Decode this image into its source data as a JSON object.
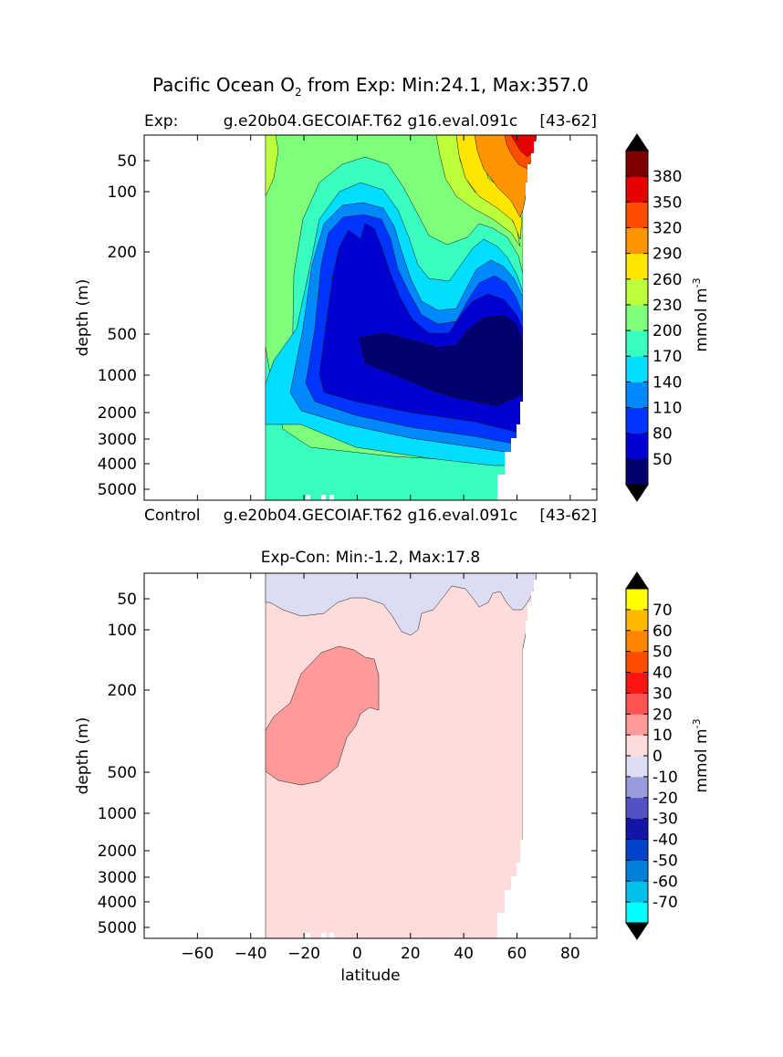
{
  "suptitle": {
    "prefix": "Pacific Ocean O",
    "subscript": "2",
    "suffix": " from Exp: Min:24.1, Max:357.0"
  },
  "colors": {
    "fill_lowest": "#ffffff",
    "exp_levels": [
      "#00006e",
      "#0000d0",
      "#0035ff",
      "#0089ff",
      "#00ddff",
      "#38ffc0",
      "#7dff7b",
      "#bcff3b",
      "#ffe600",
      "#ff9500",
      "#ff4d00",
      "#e60000",
      "#7f0000"
    ],
    "diff_levels": [
      "#00ffff",
      "#00bfe8",
      "#0080d8",
      "#0043c8",
      "#1414a6",
      "#5252c4",
      "#9a9ade",
      "#dcdcf2",
      "#ffdcdc",
      "#ff9a9a",
      "#ff5252",
      "#ff1414",
      "#ff4d00",
      "#ff8500",
      "#ffb800",
      "#ffff00"
    ]
  },
  "chart_data": [
    {
      "type": "contourf",
      "name": "experiment",
      "title_left": "Exp:",
      "title_center": "g.e20b04.GECOIAF.T62 g16.eval.091c",
      "title_right": "[43-62]",
      "xlabel": "",
      "ylabel": "depth (m)",
      "xlim": [
        -80,
        90
      ],
      "x_scale": "linear",
      "y_scale": "log-like, inverted",
      "y_ticks": [
        50,
        100,
        200,
        500,
        1000,
        2000,
        3000,
        4000,
        5000
      ],
      "y_tick_labels": [
        "50",
        "100",
        "200",
        "500",
        "1000",
        "2000",
        "3000",
        "4000",
        "5000"
      ],
      "x_tick_labels_visible": false,
      "data_extent_lat": [
        -34,
        67
      ],
      "colorbar": {
        "label_main": "mmol m",
        "label_exp": "-3",
        "levels": [
          20,
          50,
          80,
          110,
          140,
          170,
          200,
          230,
          260,
          290,
          320,
          350,
          380,
          410
        ],
        "tick_labels": [
          "50",
          "80",
          "110",
          "140",
          "170",
          "200",
          "230",
          "260",
          "290",
          "320",
          "350",
          "380"
        ],
        "extend": "both"
      }
    },
    {
      "type": "contourf",
      "name": "difference",
      "title_left": "Control",
      "title_center": "g.e20b04.GECOIAF.T62 g16.eval.091c",
      "title_right": "[43-62]",
      "title": "Exp-Con: Min:-1.2, Max:17.8",
      "xlabel": "latitude",
      "ylabel": "depth (m)",
      "xlim": [
        -80,
        90
      ],
      "x_ticks": [
        -60,
        -40,
        -20,
        0,
        20,
        40,
        60,
        80
      ],
      "x_tick_labels": [
        "−60",
        "−40",
        "−20",
        "0",
        "20",
        "40",
        "60",
        "80"
      ],
      "y_ticks": [
        50,
        100,
        200,
        500,
        1000,
        2000,
        3000,
        4000,
        5000
      ],
      "y_tick_labels": [
        "50",
        "100",
        "200",
        "500",
        "1000",
        "2000",
        "3000",
        "4000",
        "5000"
      ],
      "data_extent_lat": [
        -34,
        67
      ],
      "colorbar": {
        "label_main": "mmol m",
        "label_exp": "-3",
        "levels": [
          -80,
          -70,
          -60,
          -50,
          -40,
          -30,
          -20,
          -10,
          0,
          10,
          20,
          30,
          40,
          50,
          60,
          70,
          80
        ],
        "tick_labels": [
          "-70",
          "-60",
          "-50",
          "-40",
          "-30",
          "-20",
          "-10",
          "0",
          "10",
          "20",
          "30",
          "40",
          "50",
          "60",
          "70"
        ],
        "extend": "both"
      }
    }
  ]
}
